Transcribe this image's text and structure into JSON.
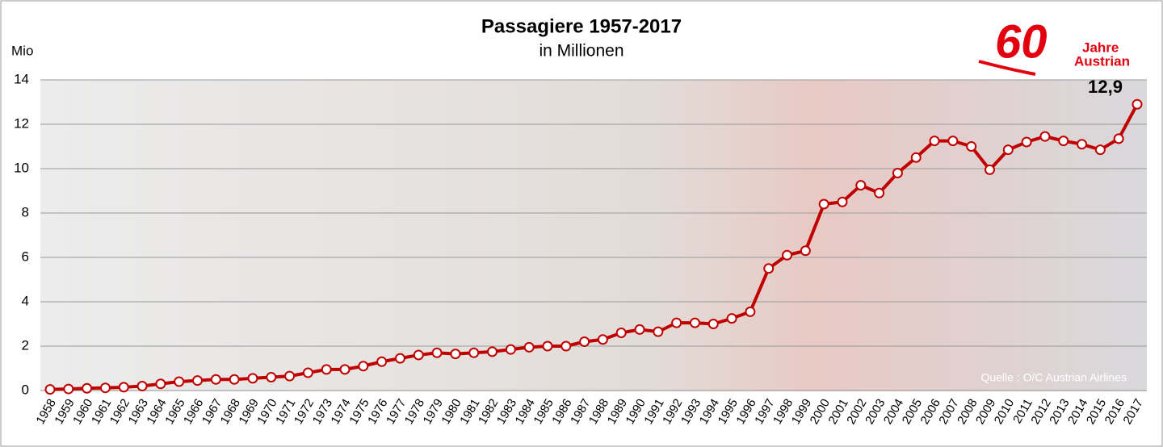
{
  "chart_data": {
    "type": "line",
    "title": "Passagiere  1957-2017",
    "subtitle": "in Millionen",
    "y_axis_label": "Mio",
    "source": "Quelle : O/C Austrian Airlines",
    "logo": {
      "number": "60",
      "line1": "Jahre",
      "line2": "Austrian"
    },
    "categories": [
      "1958",
      "1959",
      "1960",
      "1961",
      "1962",
      "1963",
      "1964",
      "1965",
      "1966",
      "1967",
      "1968",
      "1969",
      "1970",
      "1971",
      "1972",
      "1973",
      "1974",
      "1975",
      "1976",
      "1977",
      "1978",
      "1979",
      "1980",
      "1981",
      "1982",
      "1983",
      "1984",
      "1985",
      "1986",
      "1987",
      "1988",
      "1989",
      "1990",
      "1991",
      "1992",
      "1993",
      "1994",
      "1995",
      "1996",
      "1997",
      "1998",
      "1999",
      "2000",
      "2001",
      "2002",
      "2003",
      "2004",
      "2005",
      "2006",
      "2007",
      "2008",
      "2009",
      "2010",
      "2011",
      "2012",
      "2013",
      "2014",
      "2015",
      "2016",
      "2017"
    ],
    "series": [
      {
        "name": "Passagiere",
        "color": "#c00000",
        "values": [
          0.05,
          0.07,
          0.1,
          0.12,
          0.15,
          0.2,
          0.3,
          0.4,
          0.45,
          0.5,
          0.5,
          0.55,
          0.6,
          0.65,
          0.8,
          0.95,
          0.95,
          1.1,
          1.3,
          1.45,
          1.6,
          1.7,
          1.65,
          1.7,
          1.75,
          1.85,
          1.95,
          2.0,
          2.0,
          2.2,
          2.3,
          2.6,
          2.75,
          2.65,
          3.05,
          3.05,
          3.0,
          3.25,
          3.55,
          5.5,
          6.1,
          6.3,
          8.4,
          8.5,
          9.25,
          8.9,
          9.8,
          10.5,
          11.25,
          11.25,
          11.0,
          9.95,
          10.85,
          11.2,
          11.45,
          11.25,
          11.1,
          10.85,
          11.35,
          12.9
        ],
        "value_labels": [
          null,
          null,
          null,
          null,
          null,
          null,
          null,
          null,
          null,
          null,
          null,
          null,
          null,
          null,
          null,
          null,
          null,
          null,
          null,
          null,
          null,
          null,
          null,
          null,
          null,
          null,
          null,
          null,
          null,
          null,
          null,
          null,
          null,
          null,
          null,
          null,
          null,
          null,
          null,
          null,
          null,
          null,
          null,
          null,
          null,
          null,
          null,
          null,
          null,
          null,
          null,
          null,
          null,
          null,
          null,
          null,
          null,
          null,
          null,
          "12,9"
        ]
      }
    ],
    "ylim": [
      0,
      14
    ],
    "yticks": [
      0,
      2,
      4,
      6,
      8,
      10,
      12,
      14
    ],
    "grid": true
  }
}
